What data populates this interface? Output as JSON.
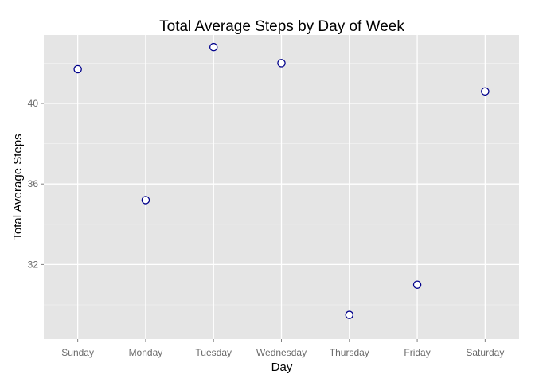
{
  "chart_data": {
    "type": "scatter",
    "title": "Total Average Steps by Day of Week",
    "xlabel": "Day",
    "ylabel": "Total Average Steps",
    "categories": [
      "Sunday",
      "Monday",
      "Tuesday",
      "Wednesday",
      "Thursday",
      "Friday",
      "Saturday"
    ],
    "values": [
      41.7,
      35.2,
      42.8,
      42.0,
      29.5,
      31.0,
      40.6
    ],
    "yticks": [
      32,
      36,
      40
    ],
    "ylim": [
      28.3,
      43.4
    ],
    "grid": true,
    "panel_background": "#e5e5e5",
    "point_stroke_color": "#00008b",
    "point_fill_color": "#ffffff",
    "grid_color": "#ffffff"
  }
}
